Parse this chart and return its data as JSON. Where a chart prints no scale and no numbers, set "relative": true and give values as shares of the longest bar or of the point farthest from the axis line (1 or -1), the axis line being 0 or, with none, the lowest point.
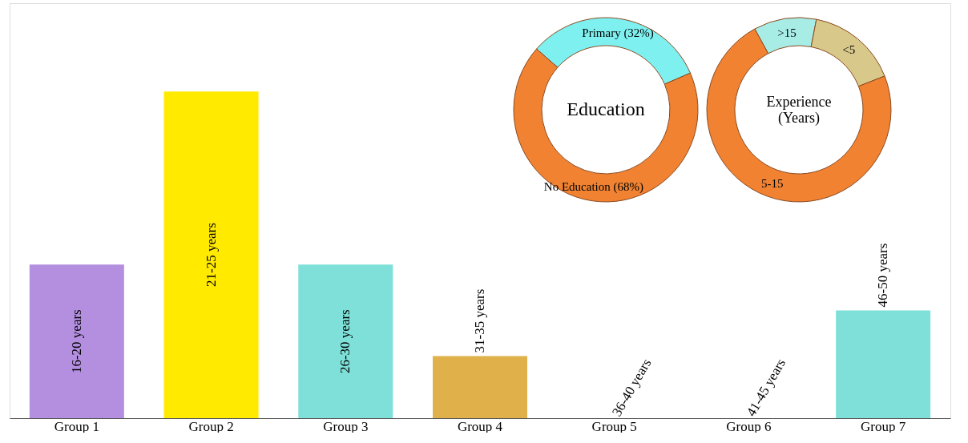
{
  "chart_data": [
    {
      "type": "bar",
      "relative": true,
      "categories": [
        "Group 1",
        "Group 2",
        "Group 3",
        "Group 4",
        "Group 5",
        "Group 6",
        "Group 7"
      ],
      "values": [
        0.47,
        1,
        0.47,
        0.19,
        0,
        0,
        0.33
      ],
      "colors": [
        "#b48fe0",
        "#ffea00",
        "#7ee0d8",
        "#e0b04a",
        "#7ee0d8",
        "#7ee0d8",
        "#7ee0d8"
      ],
      "annotations": [
        "16-20 years",
        "21-25 years",
        "26-30 years",
        {
          "text": "31-35 years",
          "x": "Group 4",
          "y": 0.19
        },
        {
          "text": "36-40 years",
          "x": "Group 5",
          "y": 0
        },
        {
          "text": "41-45 years",
          "x": "Group 6",
          "y": 0
        },
        {
          "text": "46-50 years",
          "x": "Group 7",
          "y": 0.33
        }
      ]
    },
    {
      "type": "donut",
      "title": "Education",
      "categories": [
        "Primary (32%)",
        "No Education (68%)"
      ],
      "values": [
        32,
        68
      ],
      "colors": [
        "#7ff0f0",
        "#f08232"
      ]
    },
    {
      "type": "donut",
      "title": "Experience (Years)",
      "categories": [
        ">15",
        "<5",
        "5-15"
      ],
      "values": [
        11,
        16,
        73
      ],
      "colors": [
        "#a8ece6",
        "#d8c88a",
        "#f08232"
      ]
    }
  ]
}
